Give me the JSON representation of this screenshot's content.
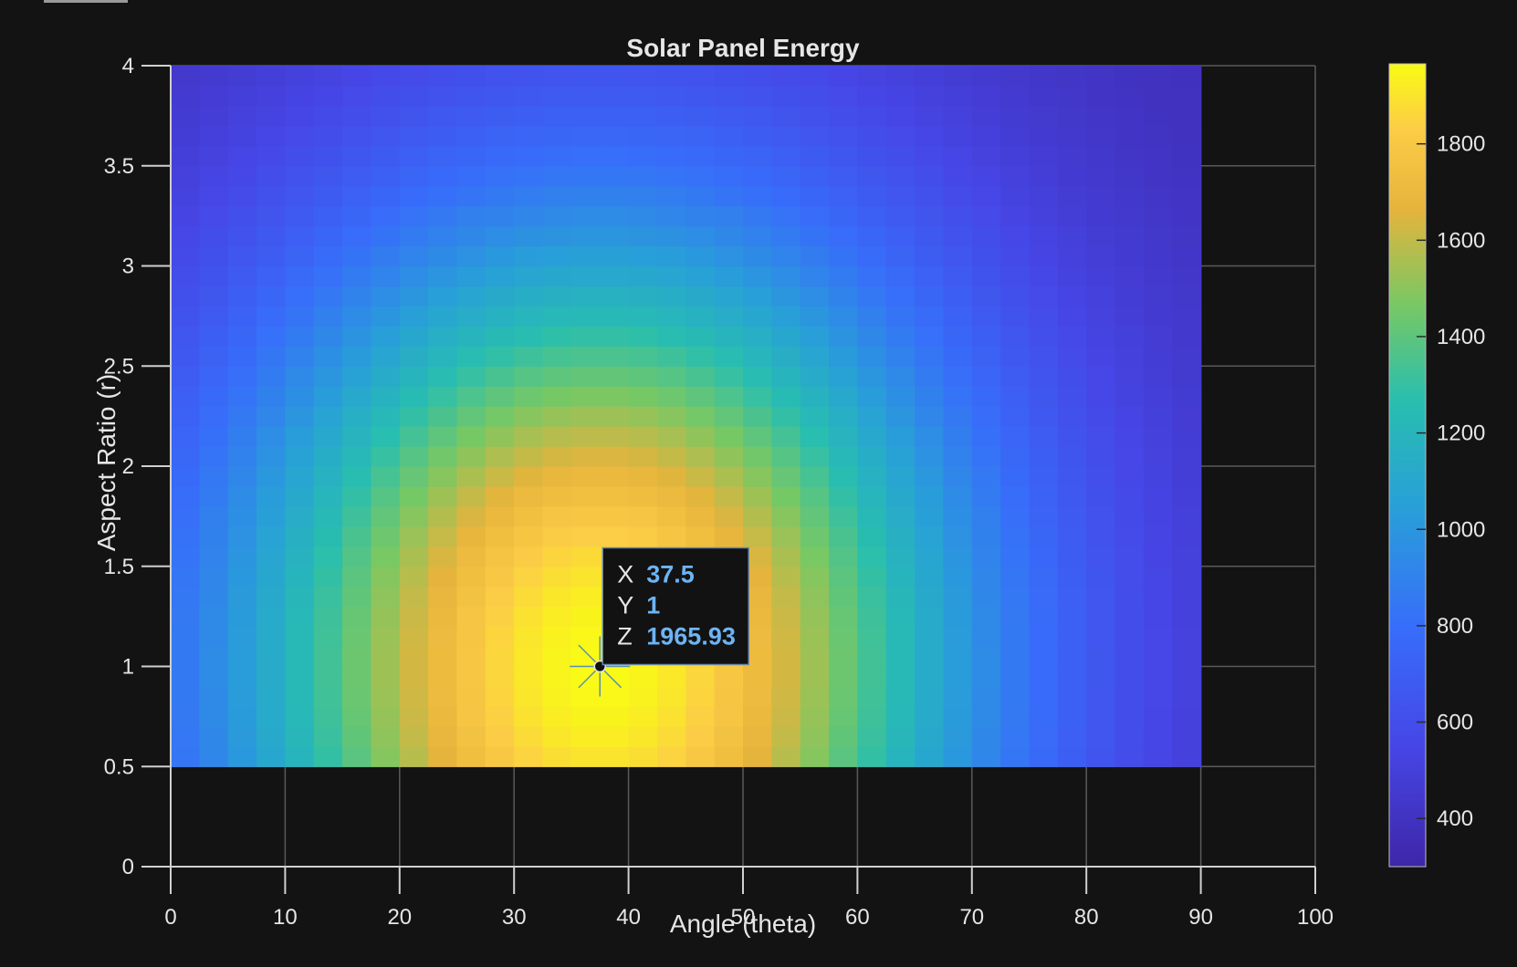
{
  "chart_data": {
    "type": "heatmap",
    "title": "Solar Panel Energy",
    "xlabel": "Angle (theta)",
    "ylabel": "Aspect Ratio (r)",
    "xlim": [
      0,
      100
    ],
    "ylim": [
      0,
      4
    ],
    "xticks": [
      0,
      10,
      20,
      30,
      40,
      50,
      60,
      70,
      80,
      90,
      100
    ],
    "yticks": [
      0,
      0.5,
      1,
      1.5,
      2,
      2.5,
      3,
      3.5,
      4
    ],
    "x_range": [
      0,
      90
    ],
    "y_range": [
      0.5,
      4
    ],
    "x_step": 2.5,
    "y_step": 0.1,
    "colormap": "parula",
    "colorbar": {
      "min": 300,
      "max": 1966,
      "ticks": [
        400,
        600,
        800,
        1000,
        1200,
        1400,
        1600,
        1800
      ]
    },
    "datatip": {
      "x_key": "X",
      "x": "37.5",
      "y_key": "Y",
      "y": "1",
      "z_key": "Z",
      "z": "1965.93"
    },
    "grid": true
  }
}
